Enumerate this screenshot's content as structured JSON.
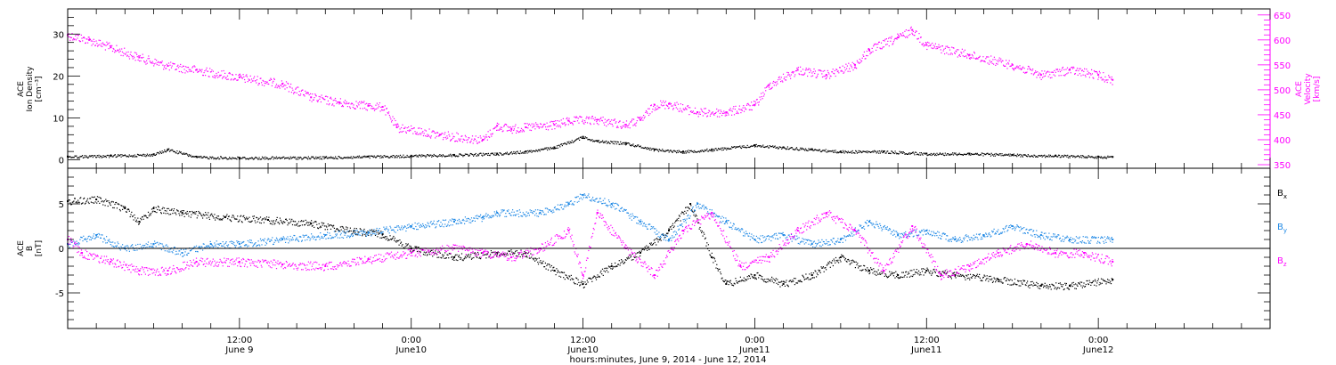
{
  "chart_data": [
    {
      "type": "scatter",
      "xlabel": "hours:minutes, June  9, 2014 - June 12, 2014",
      "x_ticks": [
        {
          "time": "2014-06-09T12:00",
          "line1": "12:00",
          "line2": "June  9"
        },
        {
          "time": "2014-06-10T00:00",
          "line1": "0:00",
          "line2": "June10"
        },
        {
          "time": "2014-06-10T12:00",
          "line1": "12:00",
          "line2": "June10"
        },
        {
          "time": "2014-06-11T00:00",
          "line1": "0:00",
          "line2": "June11"
        },
        {
          "time": "2014-06-11T12:00",
          "line1": "12:00",
          "line2": "June11"
        },
        {
          "time": "2014-06-12T00:00",
          "line1": "0:00",
          "line2": "June12"
        }
      ],
      "xlim": [
        "2014-06-09T00:00",
        "2014-06-12T12:00"
      ],
      "ylabel_left": [
        "ACE",
        "Ion Density",
        "[cm⁻³]"
      ],
      "ylim_left": [
        -2,
        36
      ],
      "yticks_left": [
        "0",
        "10",
        "20",
        "30"
      ],
      "ylabel_right": [
        "ACE",
        "Velocity",
        "[km/s]"
      ],
      "ylim_right": [
        350,
        655
      ],
      "yticks_right": [
        "350",
        "400",
        "450",
        "500",
        "550",
        "600",
        "650"
      ],
      "series": [
        {
          "axis": "left",
          "color": "#000000",
          "points": [
            [
              "2014-06-09T00:00",
              0.8
            ],
            [
              "2014-06-09T03:00",
              1.0
            ],
            [
              "2014-06-09T06:00",
              1.3
            ],
            [
              "2014-06-09T07:00",
              2.5
            ],
            [
              "2014-06-09T09:00",
              0.7
            ],
            [
              "2014-06-09T12:00",
              0.5
            ],
            [
              "2014-06-09T18:00",
              0.6
            ],
            [
              "2014-06-09T21:00",
              0.8
            ],
            [
              "2014-06-10T00:00",
              1.0
            ],
            [
              "2014-06-10T03:00",
              1.2
            ],
            [
              "2014-06-10T06:00",
              1.5
            ],
            [
              "2014-06-10T08:00",
              2.0
            ],
            [
              "2014-06-10T10:00",
              3.0
            ],
            [
              "2014-06-10T12:00",
              5.5
            ],
            [
              "2014-06-10T13:00",
              4.5
            ],
            [
              "2014-06-10T15:00",
              4.0
            ],
            [
              "2014-06-10T17:00",
              2.5
            ],
            [
              "2014-06-10T19:00",
              2.0
            ],
            [
              "2014-06-10T21:00",
              2.5
            ],
            [
              "2014-06-11T00:00",
              3.5
            ],
            [
              "2014-06-11T02:00",
              3.0
            ],
            [
              "2014-06-11T04:00",
              2.5
            ],
            [
              "2014-06-11T06:00",
              2.0
            ],
            [
              "2014-06-11T09:00",
              2.0
            ],
            [
              "2014-06-11T12:00",
              1.5
            ],
            [
              "2014-06-11T15:00",
              1.5
            ],
            [
              "2014-06-11T18:00",
              1.2
            ],
            [
              "2014-06-11T21:00",
              1.0
            ],
            [
              "2014-06-12T00:00",
              0.8
            ],
            [
              "2014-06-12T01:00",
              0.7
            ]
          ]
        },
        {
          "axis": "right",
          "color": "#ff00ff",
          "points": [
            [
              "2014-06-09T00:00",
              610
            ],
            [
              "2014-06-09T01:30",
              600
            ],
            [
              "2014-06-09T03:00",
              585
            ],
            [
              "2014-06-09T05:00",
              565
            ],
            [
              "2014-06-09T07:00",
              548
            ],
            [
              "2014-06-09T09:00",
              540
            ],
            [
              "2014-06-09T12:00",
              525
            ],
            [
              "2014-06-09T15:00",
              512
            ],
            [
              "2014-06-09T17:00",
              485
            ],
            [
              "2014-06-09T19:00",
              475
            ],
            [
              "2014-06-09T21:00",
              468
            ],
            [
              "2014-06-09T22:00",
              466
            ],
            [
              "2014-06-09T23:00",
              425
            ],
            [
              "2014-06-10T02:00",
              410
            ],
            [
              "2014-06-10T05:00",
              400
            ],
            [
              "2014-06-10T06:00",
              428
            ],
            [
              "2014-06-10T07:00",
              422
            ],
            [
              "2014-06-10T08:00",
              425
            ],
            [
              "2014-06-10T10:00",
              430
            ],
            [
              "2014-06-10T11:00",
              438
            ],
            [
              "2014-06-10T13:00",
              440
            ],
            [
              "2014-06-10T15:00",
              430
            ],
            [
              "2014-06-10T16:00",
              440
            ],
            [
              "2014-06-10T17:00",
              470
            ],
            [
              "2014-06-10T18:00",
              472
            ],
            [
              "2014-06-10T20:00",
              455
            ],
            [
              "2014-06-10T22:00",
              455
            ],
            [
              "2014-06-11T00:00",
              470
            ],
            [
              "2014-06-11T01:00",
              510
            ],
            [
              "2014-06-11T03:00",
              540
            ],
            [
              "2014-06-11T05:00",
              530
            ],
            [
              "2014-06-11T07:00",
              550
            ],
            [
              "2014-06-11T08:00",
              580
            ],
            [
              "2014-06-11T10:00",
              605
            ],
            [
              "2014-06-11T11:00",
              620
            ],
            [
              "2014-06-11T12:00",
              590
            ],
            [
              "2014-06-11T15:00",
              570
            ],
            [
              "2014-06-11T18:00",
              550
            ],
            [
              "2014-06-11T20:00",
              530
            ],
            [
              "2014-06-11T22:00",
              540
            ],
            [
              "2014-06-12T00:00",
              530
            ],
            [
              "2014-06-12T01:00",
              520
            ]
          ]
        }
      ]
    },
    {
      "type": "scatter",
      "ylabel_left": [
        "ACE",
        "B",
        "[nT]"
      ],
      "ylim_left": [
        -9,
        9
      ],
      "yticks_left": [
        "-5",
        "0",
        "5"
      ],
      "zero_line": true,
      "legend_position": "right",
      "series": [
        {
          "name": "B",
          "subscript": "x",
          "color": "#000000",
          "points": [
            [
              "2014-06-09T00:00",
              5.3
            ],
            [
              "2014-06-09T02:00",
              5.5
            ],
            [
              "2014-06-09T04:00",
              4.5
            ],
            [
              "2014-06-09T05:00",
              3.0
            ],
            [
              "2014-06-09T06:00",
              4.5
            ],
            [
              "2014-06-09T08:00",
              4.0
            ],
            [
              "2014-06-09T11:00",
              3.5
            ],
            [
              "2014-06-09T14:00",
              3.2
            ],
            [
              "2014-06-09T17:00",
              2.8
            ],
            [
              "2014-06-09T20:00",
              2.0
            ],
            [
              "2014-06-09T22:00",
              1.6
            ],
            [
              "2014-06-10T00:00",
              0.0
            ],
            [
              "2014-06-10T03:00",
              -1.0
            ],
            [
              "2014-06-10T06:00",
              -0.5
            ],
            [
              "2014-06-10T08:00",
              -0.5
            ],
            [
              "2014-06-10T10:00",
              -2.5
            ],
            [
              "2014-06-10T12:00",
              -4.0
            ],
            [
              "2014-06-10T14:00",
              -2.0
            ],
            [
              "2014-06-10T16:00",
              -0.5
            ],
            [
              "2014-06-10T18:00",
              2.0
            ],
            [
              "2014-06-10T19:30",
              5.0
            ],
            [
              "2014-06-10T21:00",
              -1.0
            ],
            [
              "2014-06-10T22:00",
              -4.0
            ],
            [
              "2014-06-11T00:00",
              -3.0
            ],
            [
              "2014-06-11T02:00",
              -4.0
            ],
            [
              "2014-06-11T04:00",
              -3.0
            ],
            [
              "2014-06-11T06:00",
              -1.0
            ],
            [
              "2014-06-11T08:00",
              -2.5
            ],
            [
              "2014-06-11T10:00",
              -3.0
            ],
            [
              "2014-06-11T12:00",
              -2.5
            ],
            [
              "2014-06-11T14:00",
              -3.0
            ],
            [
              "2014-06-11T17:00",
              -3.5
            ],
            [
              "2014-06-11T20:00",
              -4.2
            ],
            [
              "2014-06-11T22:00",
              -4.2
            ],
            [
              "2014-06-12T01:00",
              -3.5
            ]
          ]
        },
        {
          "name": "B",
          "subscript": "y",
          "color": "#1e88e5",
          "points": [
            [
              "2014-06-09T00:00",
              0.5
            ],
            [
              "2014-06-09T02:00",
              1.5
            ],
            [
              "2014-06-09T04:00",
              0.0
            ],
            [
              "2014-06-09T06:00",
              0.5
            ],
            [
              "2014-06-09T08:00",
              -0.5
            ],
            [
              "2014-06-09T10:00",
              0.5
            ],
            [
              "2014-06-09T12:00",
              0.5
            ],
            [
              "2014-06-09T15:00",
              1.0
            ],
            [
              "2014-06-09T18:00",
              1.5
            ],
            [
              "2014-06-09T21:00",
              1.8
            ],
            [
              "2014-06-10T00:00",
              2.5
            ],
            [
              "2014-06-10T03:00",
              3.0
            ],
            [
              "2014-06-10T05:00",
              3.5
            ],
            [
              "2014-06-10T06:00",
              4.0
            ],
            [
              "2014-06-10T09:00",
              4.0
            ],
            [
              "2014-06-10T11:00",
              5.0
            ],
            [
              "2014-06-10T12:00",
              6.0
            ],
            [
              "2014-06-10T14:00",
              5.0
            ],
            [
              "2014-06-10T16:00",
              3.0
            ],
            [
              "2014-06-10T18:00",
              1.0
            ],
            [
              "2014-06-10T20:00",
              5.0
            ],
            [
              "2014-06-10T22:00",
              3.0
            ],
            [
              "2014-06-11T00:00",
              1.0
            ],
            [
              "2014-06-11T02:00",
              1.5
            ],
            [
              "2014-06-11T04:00",
              0.5
            ],
            [
              "2014-06-11T06:00",
              1.0
            ],
            [
              "2014-06-11T08:00",
              3.0
            ],
            [
              "2014-06-11T10:00",
              1.5
            ],
            [
              "2014-06-11T12:00",
              2.0
            ],
            [
              "2014-06-11T14:00",
              1.0
            ],
            [
              "2014-06-11T16:00",
              1.5
            ],
            [
              "2014-06-11T18:00",
              2.5
            ],
            [
              "2014-06-11T20:00",
              1.5
            ],
            [
              "2014-06-11T22:00",
              1.0
            ],
            [
              "2014-06-12T01:00",
              1.0
            ]
          ]
        },
        {
          "name": "B",
          "subscript": "z",
          "color": "#ff00ff",
          "points": [
            [
              "2014-06-09T00:00",
              1.0
            ],
            [
              "2014-06-09T01:00",
              -0.5
            ],
            [
              "2014-06-09T03:00",
              -1.5
            ],
            [
              "2014-06-09T05:00",
              -2.5
            ],
            [
              "2014-06-09T07:00",
              -2.5
            ],
            [
              "2014-06-09T09:00",
              -1.5
            ],
            [
              "2014-06-09T12:00",
              -1.5
            ],
            [
              "2014-06-09T15:00",
              -1.8
            ],
            [
              "2014-06-09T18:00",
              -2.0
            ],
            [
              "2014-06-09T21:00",
              -1.2
            ],
            [
              "2014-06-10T00:00",
              -0.5
            ],
            [
              "2014-06-10T03:00",
              0.0
            ],
            [
              "2014-06-10T05:00",
              -0.5
            ],
            [
              "2014-06-10T07:00",
              -1.0
            ],
            [
              "2014-06-10T09:00",
              0.0
            ],
            [
              "2014-06-10T11:00",
              2.0
            ],
            [
              "2014-06-10T12:00",
              -3.0
            ],
            [
              "2014-06-10T13:00",
              4.0
            ],
            [
              "2014-06-10T15:00",
              0.0
            ],
            [
              "2014-06-10T17:00",
              -3.0
            ],
            [
              "2014-06-10T19:00",
              2.0
            ],
            [
              "2014-06-10T21:00",
              4.0
            ],
            [
              "2014-06-10T23:00",
              -2.0
            ],
            [
              "2014-06-11T01:00",
              -1.0
            ],
            [
              "2014-06-11T03:00",
              2.0
            ],
            [
              "2014-06-11T05:00",
              4.0
            ],
            [
              "2014-06-11T07:00",
              2.0
            ],
            [
              "2014-06-11T09:00",
              -2.5
            ],
            [
              "2014-06-11T11:00",
              2.5
            ],
            [
              "2014-06-11T13:00",
              -3.0
            ],
            [
              "2014-06-11T15:00",
              -2.0
            ],
            [
              "2014-06-11T17:00",
              -0.5
            ],
            [
              "2014-06-11T19:00",
              0.5
            ],
            [
              "2014-06-11T21:00",
              -0.5
            ],
            [
              "2014-06-11T23:00",
              -0.5
            ],
            [
              "2014-06-12T01:00",
              -1.5
            ]
          ]
        }
      ]
    }
  ]
}
